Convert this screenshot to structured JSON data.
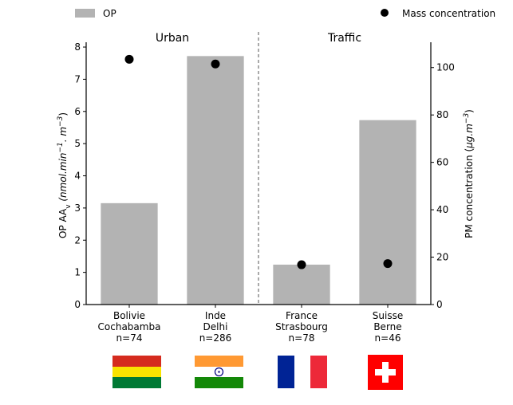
{
  "chart_data": {
    "type": "bar",
    "categories": [
      [
        "Bolivie",
        "Cochabamba",
        "n=74"
      ],
      [
        "Inde",
        "Delhi",
        "n=286"
      ],
      [
        "France",
        "Strasbourg",
        "n=78"
      ],
      [
        "Suisse",
        "Berne",
        "n=46"
      ]
    ],
    "series": [
      {
        "name": "OP",
        "kind": "bar",
        "axis": "left",
        "color": "#b3b3b3",
        "values": [
          3.15,
          7.72,
          1.24,
          5.73
        ]
      },
      {
        "name": "Mass concentration",
        "kind": "scatter",
        "axis": "right",
        "color": "#000000",
        "values": [
          103.5,
          101.5,
          16.8,
          17.3
        ]
      }
    ],
    "groups": [
      {
        "label": "Urban",
        "categories": [
          0,
          1
        ]
      },
      {
        "label": "Traffic",
        "categories": [
          2,
          3
        ]
      }
    ],
    "ylabel_left": {
      "main": "OP AA",
      "sub": "v",
      "unit": " (nmol.min",
      "exp1": "−1",
      "mid": ". m",
      "exp2": "−3",
      "end": ")"
    },
    "ylabel_right": {
      "main": "PM concentration (",
      "unit": "μg.m",
      "exp": "−3",
      "end": ")"
    },
    "ylim_left": [
      0,
      8.1
    ],
    "ylim_right": [
      0,
      110
    ],
    "yticks_left": [
      0,
      1,
      2,
      3,
      4,
      5,
      6,
      7,
      8
    ],
    "yticks_right": [
      0,
      20,
      40,
      60,
      80,
      100
    ],
    "legend_position": "top",
    "flags": [
      "bolivia-flag",
      "india-flag",
      "france-flag",
      "switzerland-flag"
    ]
  }
}
